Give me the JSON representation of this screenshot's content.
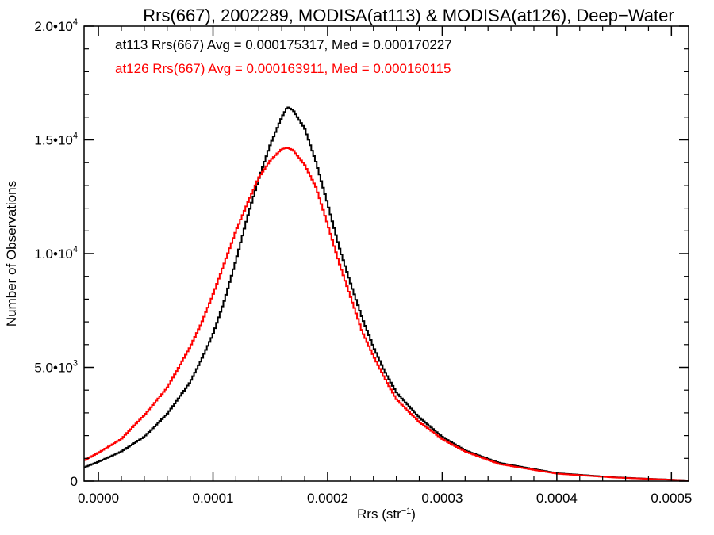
{
  "chart_data": {
    "type": "line",
    "title": "Rrs(667), 2002289, MODISA(at113) & MODISA(at126), Deep−Water",
    "xlabel": "Rrs (str",
    "xlabel_sup": "−1",
    "xlabel_close": ")",
    "ylabel": "Number of Observations",
    "xlim": [
      -1.25e-05,
      0.000515
    ],
    "ylim": [
      0,
      20000
    ],
    "x_ticks": [
      {
        "value": 0.0,
        "label": "0.0000"
      },
      {
        "value": 0.0001,
        "label": "0.0001"
      },
      {
        "value": 0.0002,
        "label": "0.0002"
      },
      {
        "value": 0.0003,
        "label": "0.0003"
      },
      {
        "value": 0.0004,
        "label": "0.0004"
      },
      {
        "value": 0.0005,
        "label": "0.0005"
      }
    ],
    "y_ticks": [
      {
        "value": 0,
        "mant": "0",
        "exp": ""
      },
      {
        "value": 5000,
        "mant": "5.0•10",
        "exp": "3"
      },
      {
        "value": 10000,
        "mant": "1.0•10",
        "exp": "4"
      },
      {
        "value": 15000,
        "mant": "1.5•10",
        "exp": "4"
      },
      {
        "value": 20000,
        "mant": "2.0•10",
        "exp": "4"
      }
    ],
    "grid": false,
    "legend_position": "top-left",
    "series": [
      {
        "name": "at113 Rrs(667) Avg = 0.000175317, Med = 0.000170227",
        "color": "#000000",
        "x": [
          -1.25e-05,
          0.0,
          2e-05,
          4e-05,
          6e-05,
          8e-05,
          9e-05,
          0.0001,
          0.00011,
          0.00012,
          0.00013,
          0.00014,
          0.00015,
          0.00016,
          0.000165,
          0.00017,
          0.00018,
          0.00019,
          0.0002,
          0.00021,
          0.00022,
          0.00023,
          0.00024,
          0.00025,
          0.00026,
          0.00028,
          0.0003,
          0.00032,
          0.00035,
          0.0004,
          0.00045,
          0.000515
        ],
        "y": [
          600,
          850,
          1300,
          1950,
          2950,
          4350,
          5350,
          6450,
          7950,
          9700,
          11600,
          13300,
          14800,
          16000,
          16450,
          16300,
          15500,
          14000,
          12200,
          10300,
          8700,
          7200,
          5900,
          4800,
          3900,
          2800,
          1950,
          1350,
          800,
          350,
          170,
          30
        ]
      },
      {
        "name": "at126 Rrs(667) Avg = 0.000163911, Med = 0.000160115",
        "color": "#ff0000",
        "x": [
          -1.25e-05,
          0.0,
          2e-05,
          4e-05,
          6e-05,
          8e-05,
          9e-05,
          0.0001,
          0.00011,
          0.00012,
          0.00013,
          0.00014,
          0.00015,
          0.00016,
          0.000165,
          0.00017,
          0.00018,
          0.00019,
          0.0002,
          0.00021,
          0.00022,
          0.00023,
          0.00024,
          0.00025,
          0.00026,
          0.00028,
          0.0003,
          0.00032,
          0.00035,
          0.0004,
          0.00045,
          0.000515
        ],
        "y": [
          900,
          1250,
          1850,
          2900,
          4100,
          5900,
          6950,
          8200,
          9600,
          11000,
          12200,
          13350,
          14100,
          14600,
          14650,
          14550,
          13900,
          12900,
          11300,
          9600,
          8100,
          6600,
          5500,
          4500,
          3600,
          2600,
          1850,
          1300,
          750,
          330,
          160,
          30
        ]
      }
    ]
  }
}
